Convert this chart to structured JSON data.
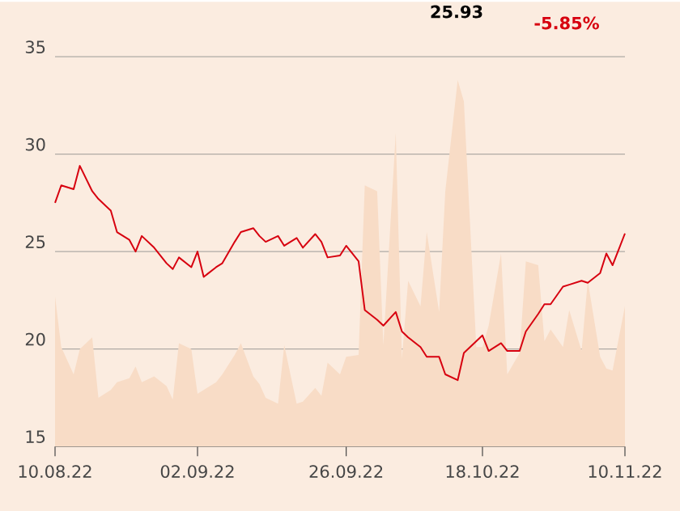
{
  "chart_data": {
    "type": "line",
    "x": [
      "2022-08-10",
      "2022-08-11",
      "2022-08-13",
      "2022-08-14",
      "2022-08-16",
      "2022-08-17",
      "2022-08-19",
      "2022-08-20",
      "2022-08-22",
      "2022-08-23",
      "2022-08-24",
      "2022-08-26",
      "2022-08-28",
      "2022-08-29",
      "2022-08-30",
      "2022-09-01",
      "2022-09-02",
      "2022-09-03",
      "2022-09-05",
      "2022-09-06",
      "2022-09-08",
      "2022-09-09",
      "2022-09-11",
      "2022-09-12",
      "2022-09-13",
      "2022-09-15",
      "2022-09-16",
      "2022-09-18",
      "2022-09-19",
      "2022-09-21",
      "2022-09-22",
      "2022-09-23",
      "2022-09-25",
      "2022-09-26",
      "2022-09-28",
      "2022-09-29",
      "2022-10-01",
      "2022-10-02",
      "2022-10-04",
      "2022-10-05",
      "2022-10-06",
      "2022-10-08",
      "2022-10-09",
      "2022-10-11",
      "2022-10-12",
      "2022-10-14",
      "2022-10-15",
      "2022-10-17",
      "2022-10-18",
      "2022-10-19",
      "2022-10-21",
      "2022-10-22",
      "2022-10-24",
      "2022-10-25",
      "2022-10-27",
      "2022-10-28",
      "2022-10-29",
      "2022-10-31",
      "2022-11-01",
      "2022-11-03",
      "2022-11-04",
      "2022-11-06",
      "2022-11-07",
      "2022-11-08",
      "2022-11-10"
    ],
    "series": [
      {
        "type": "area",
        "color": "#f8dcc6",
        "values": [
          22.7,
          20.1,
          18.7,
          20.0,
          20.6,
          17.5,
          17.9,
          18.3,
          18.5,
          19.1,
          18.3,
          18.6,
          18.1,
          17.4,
          20.3,
          20.0,
          17.7,
          17.9,
          18.3,
          18.7,
          19.7,
          20.3,
          18.6,
          18.2,
          17.5,
          17.2,
          20.2,
          17.2,
          17.3,
          18.0,
          17.6,
          19.3,
          18.7,
          19.6,
          19.7,
          28.4,
          28.1,
          20.2,
          31.1,
          19.5,
          23.5,
          22.2,
          26.0,
          21.9,
          28.1,
          33.8,
          32.7,
          20.1,
          20.1,
          21.2,
          24.9,
          18.7,
          19.8,
          24.5,
          24.3,
          20.4,
          21.0,
          20.1,
          22.0,
          19.9,
          23.5,
          19.6,
          19.0,
          18.9,
          22.2
        ]
      },
      {
        "color": "#d7000f",
        "values": [
          27.5,
          28.4,
          28.2,
          29.4,
          28.1,
          27.7,
          27.1,
          26.0,
          25.6,
          25.0,
          25.8,
          25.2,
          24.4,
          24.1,
          24.7,
          24.2,
          25.0,
          23.7,
          24.2,
          24.4,
          25.5,
          26.0,
          26.2,
          25.8,
          25.5,
          25.8,
          25.3,
          25.7,
          25.2,
          25.9,
          25.5,
          24.7,
          24.8,
          25.3,
          24.5,
          22.0,
          21.5,
          21.2,
          21.9,
          20.9,
          20.6,
          20.1,
          19.6,
          19.6,
          18.7,
          18.4,
          19.8,
          20.4,
          20.7,
          19.9,
          20.3,
          19.9,
          19.9,
          20.9,
          21.8,
          22.3,
          22.3,
          23.2,
          23.3,
          23.5,
          23.4,
          23.9,
          24.9,
          24.3,
          25.93
        ]
      }
    ],
    "xlim": [
      "2022-08-10",
      "2022-11-10"
    ],
    "xticks": [
      {
        "value": "2022-08-10",
        "label": "10.08.22"
      },
      {
        "value": "2022-09-02",
        "label": "02.09.22"
      },
      {
        "value": "2022-09-26",
        "label": "26.09.22"
      },
      {
        "value": "2022-10-18",
        "label": "18.10.22"
      },
      {
        "value": "2022-11-10",
        "label": "10.11.22"
      }
    ],
    "ylim": [
      15,
      35
    ],
    "yticks": [
      15,
      20,
      25,
      30,
      35
    ],
    "grid": "y",
    "annotations": [
      "25.93",
      "-5.85%"
    ]
  }
}
